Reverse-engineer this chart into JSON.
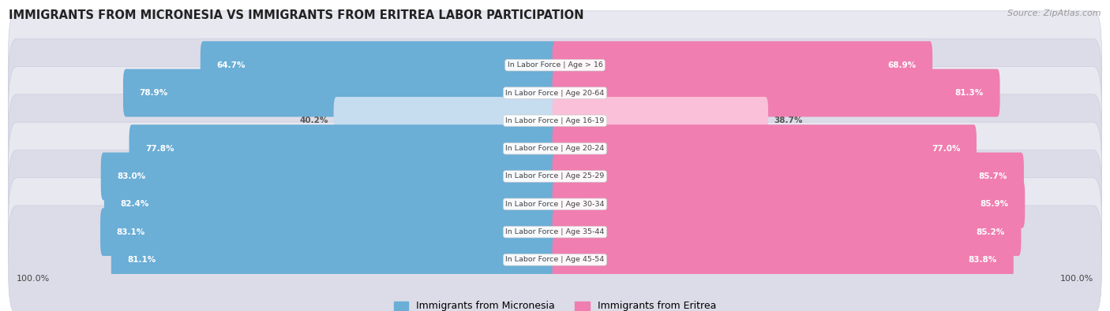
{
  "title": "IMMIGRANTS FROM MICRONESIA VS IMMIGRANTS FROM ERITREA LABOR PARTICIPATION",
  "source": "Source: ZipAtlas.com",
  "categories": [
    "In Labor Force | Age > 16",
    "In Labor Force | Age 20-64",
    "In Labor Force | Age 16-19",
    "In Labor Force | Age 20-24",
    "In Labor Force | Age 25-29",
    "In Labor Force | Age 30-34",
    "In Labor Force | Age 35-44",
    "In Labor Force | Age 45-54"
  ],
  "micronesia_values": [
    64.7,
    78.9,
    40.2,
    77.8,
    83.0,
    82.4,
    83.1,
    81.1
  ],
  "eritrea_values": [
    68.9,
    81.3,
    38.7,
    77.0,
    85.7,
    85.9,
    85.2,
    83.8
  ],
  "micronesia_color": "#6BAED6",
  "eritrea_color": "#F07EB0",
  "micronesia_color_light": "#C6DCEF",
  "eritrea_color_light": "#FAC0D9",
  "label_color_white": "#FFFFFF",
  "label_color_dark": "#555555",
  "row_bg": "#EAEAF2",
  "micronesia_label": "Immigrants from Micronesia",
  "eritrea_label": "Immigrants from Eritrea",
  "center_label_color": "#444444",
  "bottom_label": "100.0%"
}
